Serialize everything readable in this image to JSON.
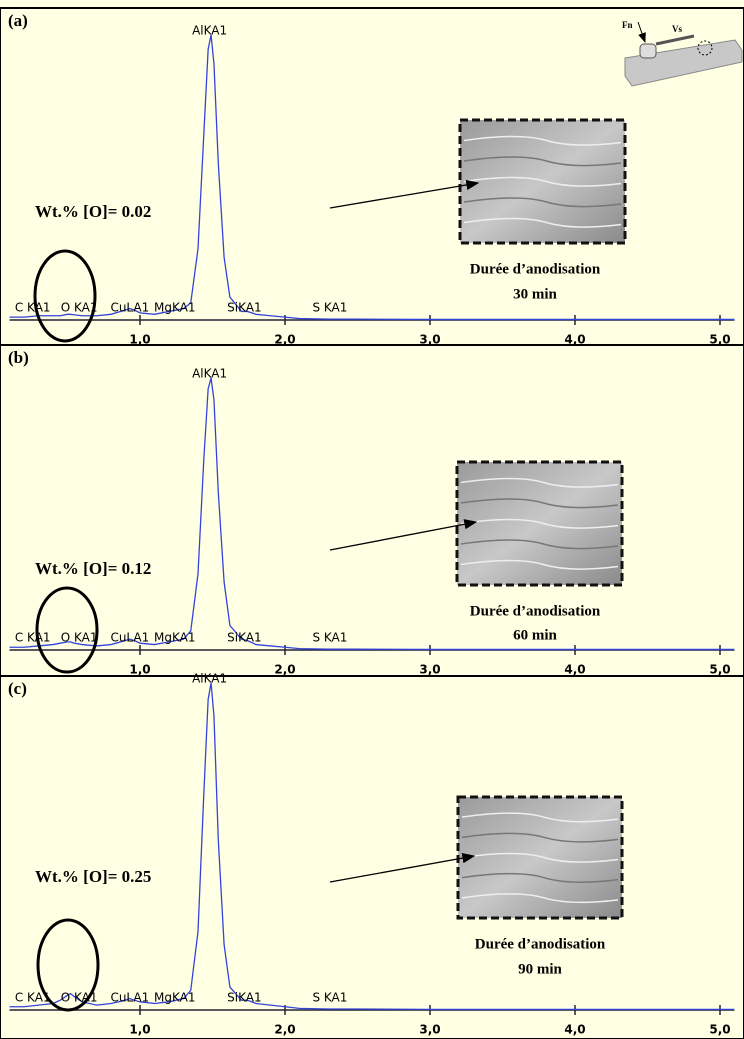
{
  "chart_data": [
    {
      "type": "line",
      "panel_label": "(a)",
      "annotation": "Wt.% [O]= 0.02",
      "caption": [
        "Durée  d’anodisation",
        "30 min"
      ],
      "inset_labels": [
        "Fn",
        "Vs"
      ],
      "x": [
        0.1,
        0.2,
        0.3,
        0.4,
        0.45,
        0.5,
        0.52,
        0.55,
        0.6,
        0.7,
        0.8,
        0.9,
        0.93,
        0.96,
        1.0,
        1.1,
        1.2,
        1.25,
        1.3,
        1.35,
        1.4,
        1.44,
        1.47,
        1.49,
        1.51,
        1.54,
        1.58,
        1.62,
        1.7,
        1.74,
        1.8,
        1.9,
        2.0,
        2.1,
        2.3,
        2.5,
        3.0,
        3.5,
        4.0,
        4.5,
        5.0,
        5.1
      ],
      "series": [
        {
          "color": "#3344dd",
          "values": [
            1,
            1,
            1.5,
            1.5,
            1.5,
            2,
            2,
            1.8,
            1.5,
            1.5,
            2,
            3.5,
            4,
            3.5,
            2.5,
            2,
            3,
            3.5,
            4,
            6,
            25,
            65,
            95,
            100,
            90,
            55,
            22,
            8,
            3,
            3,
            2,
            1.5,
            1,
            0.5,
            0.3,
            0.3,
            0.2,
            0.2,
            0.2,
            0.2,
            0.2,
            0.2
          ]
        }
      ],
      "peak_labels": [
        {
          "text": "C KA1",
          "x": 0.26
        },
        {
          "text": "O KA1",
          "x": 0.58
        },
        {
          "text": "CuLA1",
          "x": 0.93
        },
        {
          "text": "MgKA1",
          "x": 1.24
        },
        {
          "text": "AlKA1",
          "x": 1.48
        },
        {
          "text": "SiKA1",
          "x": 1.72
        },
        {
          "text": "S KA1",
          "x": 2.31
        }
      ],
      "xlim": [
        0.1,
        5.1
      ],
      "ylim": [
        0,
        100
      ],
      "xticks": [
        {
          "value": 1,
          "label": "1,0"
        },
        {
          "value": 2,
          "label": "2,0"
        },
        {
          "value": 3,
          "label": "3,0"
        },
        {
          "value": 4,
          "label": "4,0"
        },
        {
          "value": 5,
          "label": "5,0"
        }
      ]
    },
    {
      "type": "line",
      "panel_label": "(b)",
      "annotation": "Wt.% [O]= 0.12",
      "caption": [
        "Durée  d’anodisation",
        "60 min"
      ],
      "x": [
        0.1,
        0.2,
        0.3,
        0.4,
        0.45,
        0.5,
        0.52,
        0.55,
        0.6,
        0.7,
        0.8,
        0.9,
        0.93,
        0.96,
        1.0,
        1.1,
        1.2,
        1.25,
        1.3,
        1.35,
        1.4,
        1.44,
        1.47,
        1.49,
        1.51,
        1.54,
        1.58,
        1.62,
        1.7,
        1.74,
        1.8,
        1.9,
        2.0,
        2.1,
        2.3,
        2.5,
        3.0,
        3.5,
        4.0,
        4.5,
        5.0,
        5.1
      ],
      "series": [
        {
          "color": "#3344dd",
          "values": [
            1,
            1,
            1.5,
            2,
            2.5,
            3,
            3,
            2.5,
            2,
            1.5,
            2,
            3.5,
            4,
            3.5,
            2.5,
            2,
            3,
            3.5,
            4,
            7,
            28,
            70,
            96,
            100,
            92,
            58,
            25,
            9,
            4,
            3.5,
            2,
            1.5,
            1,
            0.5,
            0.3,
            0.3,
            0.2,
            0.2,
            0.2,
            0.2,
            0.2,
            0.2
          ]
        }
      ],
      "peak_labels": [
        {
          "text": "C KA1",
          "x": 0.26
        },
        {
          "text": "O KA1",
          "x": 0.58
        },
        {
          "text": "CuLA1",
          "x": 0.93
        },
        {
          "text": "MgKA1",
          "x": 1.24
        },
        {
          "text": "AlKA1",
          "x": 1.48
        },
        {
          "text": "SiKA1",
          "x": 1.72
        },
        {
          "text": "S KA1",
          "x": 2.31
        }
      ],
      "xlim": [
        0.1,
        5.1
      ],
      "ylim": [
        0,
        100
      ],
      "xticks": [
        {
          "value": 1,
          "label": "1,0"
        },
        {
          "value": 2,
          "label": "2,0"
        },
        {
          "value": 3,
          "label": "3,0"
        },
        {
          "value": 4,
          "label": "4,0"
        },
        {
          "value": 5,
          "label": "5,0"
        }
      ]
    },
    {
      "type": "line",
      "panel_label": "(c)",
      "annotation": "Wt.% [O]= 0.25",
      "caption": [
        "Durée  d’anodisation",
        "90 min"
      ],
      "x": [
        0.1,
        0.2,
        0.3,
        0.4,
        0.45,
        0.5,
        0.52,
        0.55,
        0.6,
        0.7,
        0.8,
        0.9,
        0.93,
        0.96,
        1.0,
        1.1,
        1.2,
        1.25,
        1.3,
        1.35,
        1.4,
        1.44,
        1.47,
        1.49,
        1.51,
        1.54,
        1.58,
        1.62,
        1.7,
        1.74,
        1.8,
        1.9,
        2.0,
        2.1,
        2.3,
        2.5,
        3.0,
        3.5,
        4.0,
        4.5,
        5.0,
        5.1
      ],
      "series": [
        {
          "color": "#3344dd",
          "values": [
            1,
            1,
            1.5,
            2,
            3,
            4.5,
            5,
            4,
            2.5,
            1.5,
            2,
            3,
            3.5,
            3,
            2.5,
            2,
            2.5,
            3,
            3.5,
            6,
            24,
            66,
            95,
            100,
            90,
            52,
            20,
            7,
            3,
            3,
            2,
            1.5,
            1,
            0.5,
            0.3,
            0.3,
            0.2,
            0.2,
            0.2,
            0.2,
            0.2,
            0.2
          ]
        }
      ],
      "peak_labels": [
        {
          "text": "C KA1",
          "x": 0.26
        },
        {
          "text": "O KA1",
          "x": 0.58
        },
        {
          "text": "CuLA1",
          "x": 0.93
        },
        {
          "text": "MgKA1",
          "x": 1.24
        },
        {
          "text": "AlKA1",
          "x": 1.48
        },
        {
          "text": "SiKA1",
          "x": 1.72
        },
        {
          "text": "S KA1",
          "x": 2.31
        }
      ],
      "xlim": [
        0.1,
        5.1
      ],
      "ylim": [
        0,
        100
      ],
      "xticks": [
        {
          "value": 1,
          "label": "1,0"
        },
        {
          "value": 2,
          "label": "2,0"
        },
        {
          "value": 3,
          "label": "3,0"
        },
        {
          "value": 4,
          "label": "4,0"
        },
        {
          "value": 5,
          "label": "5,0"
        }
      ]
    }
  ]
}
